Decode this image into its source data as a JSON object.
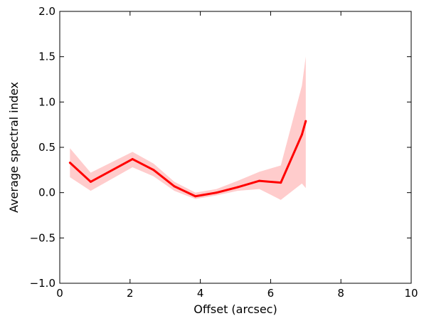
{
  "chart_data": {
    "type": "line",
    "title": "",
    "xlabel": "Offset (arcsec)",
    "ylabel": "Average spectral index",
    "xlim": [
      0,
      10
    ],
    "ylim": [
      -1.0,
      2.0
    ],
    "xticks": [
      0,
      2,
      4,
      6,
      8,
      10
    ],
    "yticks": [
      -1.0,
      -0.5,
      0.0,
      0.5,
      1.0,
      1.5,
      2.0
    ],
    "xtick_labels": [
      "0",
      "2",
      "4",
      "6",
      "8",
      "10"
    ],
    "ytick_labels": [
      "−1.0",
      "−0.5",
      "0.0",
      "0.5",
      "1.0",
      "1.5",
      "2.0"
    ],
    "grid": false,
    "legend": "none",
    "series": [
      {
        "color": "#ff0000",
        "band_color": "#ffcccc",
        "x": [
          0.29,
          0.88,
          2.07,
          2.67,
          3.26,
          3.86,
          4.46,
          5.06,
          5.68,
          6.29,
          6.89,
          7.0
        ],
        "y": [
          0.33,
          0.12,
          0.37,
          0.25,
          0.07,
          -0.04,
          0.0,
          0.06,
          0.13,
          0.11,
          0.64,
          0.79
        ],
        "lower": [
          0.17,
          0.02,
          0.28,
          0.18,
          0.02,
          -0.07,
          -0.03,
          0.02,
          0.04,
          -0.08,
          0.1,
          0.05
        ],
        "upper": [
          0.49,
          0.22,
          0.45,
          0.32,
          0.12,
          0.0,
          0.04,
          0.13,
          0.23,
          0.3,
          1.18,
          1.5
        ]
      }
    ]
  }
}
